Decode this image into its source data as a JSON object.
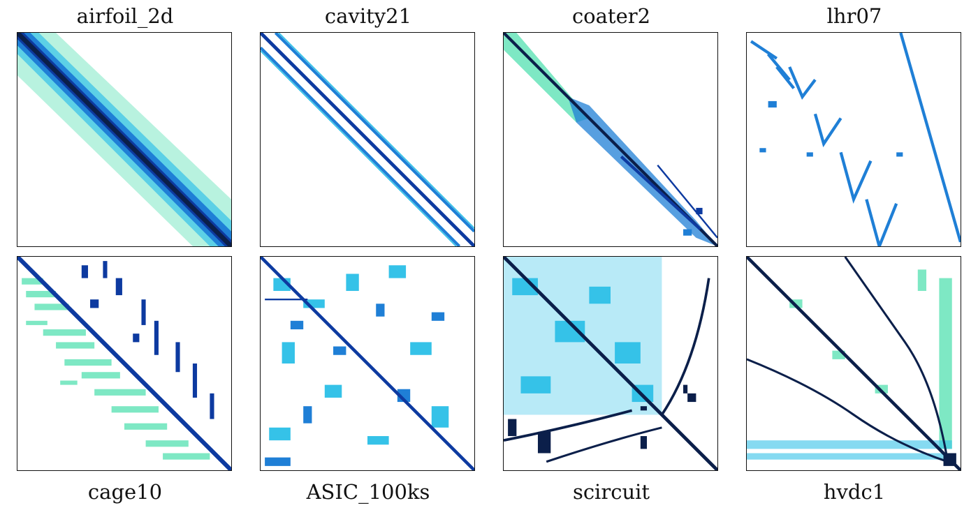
{
  "figure": {
    "colors": {
      "light": "#7ee8c4",
      "cyan": "#35c2e8",
      "blue": "#1f7fd6",
      "dark": "#0d3aa0",
      "navy": "#0b1f4a"
    },
    "top_labels": [
      "airfoil_2d",
      "cavity21",
      "coater2",
      "lhr07"
    ],
    "bottom_labels": [
      "cage10",
      "ASIC_100ks",
      "scircuit",
      "hvdc1"
    ],
    "matrices": [
      {
        "name": "airfoil_2d",
        "pattern": "banded-diagonal"
      },
      {
        "name": "cavity21",
        "pattern": "three-diagonals"
      },
      {
        "name": "coater2",
        "pattern": "diagonal-band"
      },
      {
        "name": "lhr07",
        "pattern": "v-blocks"
      },
      {
        "name": "cage10",
        "pattern": "lower-triangular"
      },
      {
        "name": "ASIC_100ks",
        "pattern": "scattered-blocks"
      },
      {
        "name": "scircuit",
        "pattern": "dense-blocks"
      },
      {
        "name": "hvdc1",
        "pattern": "curved-lines"
      }
    ]
  }
}
